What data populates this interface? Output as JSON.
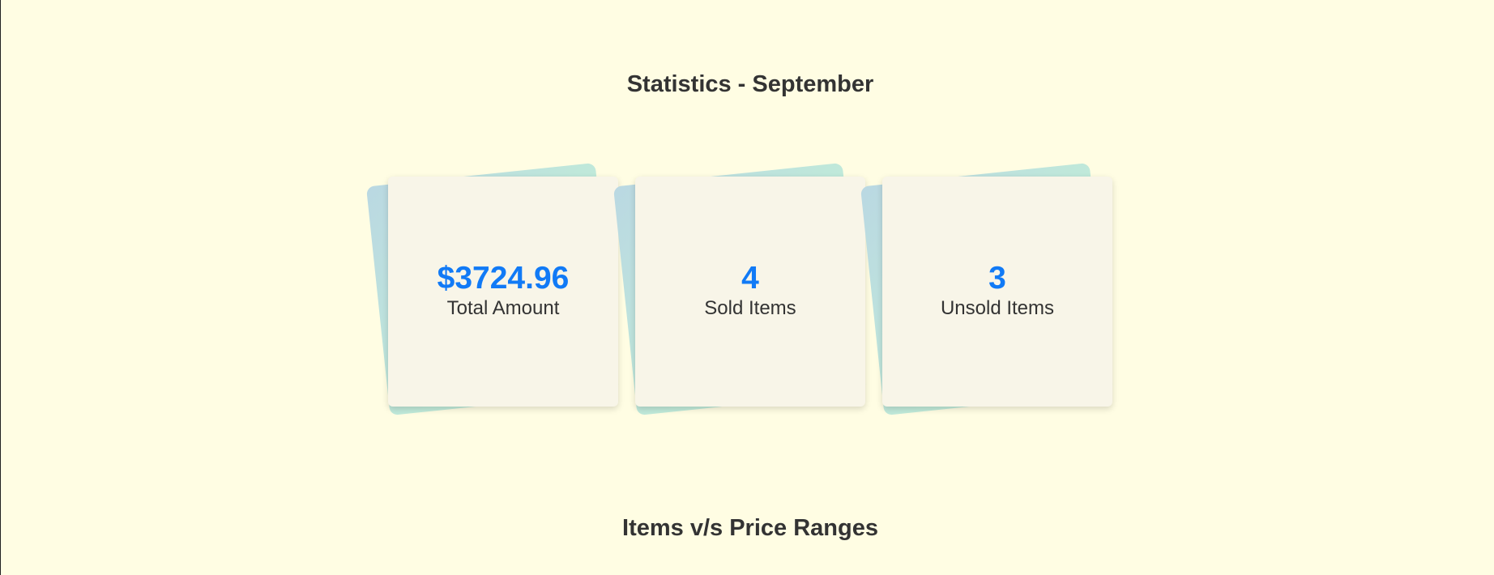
{
  "header": {
    "title": "Statistics - September"
  },
  "stats": [
    {
      "value": "$3724.96",
      "label": "Total Amount"
    },
    {
      "value": "4",
      "label": "Sold Items"
    },
    {
      "value": "3",
      "label": "Unsold Items"
    }
  ],
  "chart_section": {
    "title": "Items v/s Price Ranges"
  },
  "colors": {
    "background": "#fffde3",
    "accent": "#117af6",
    "card": "#f8f5e8",
    "card_back": "#c0ead9"
  }
}
